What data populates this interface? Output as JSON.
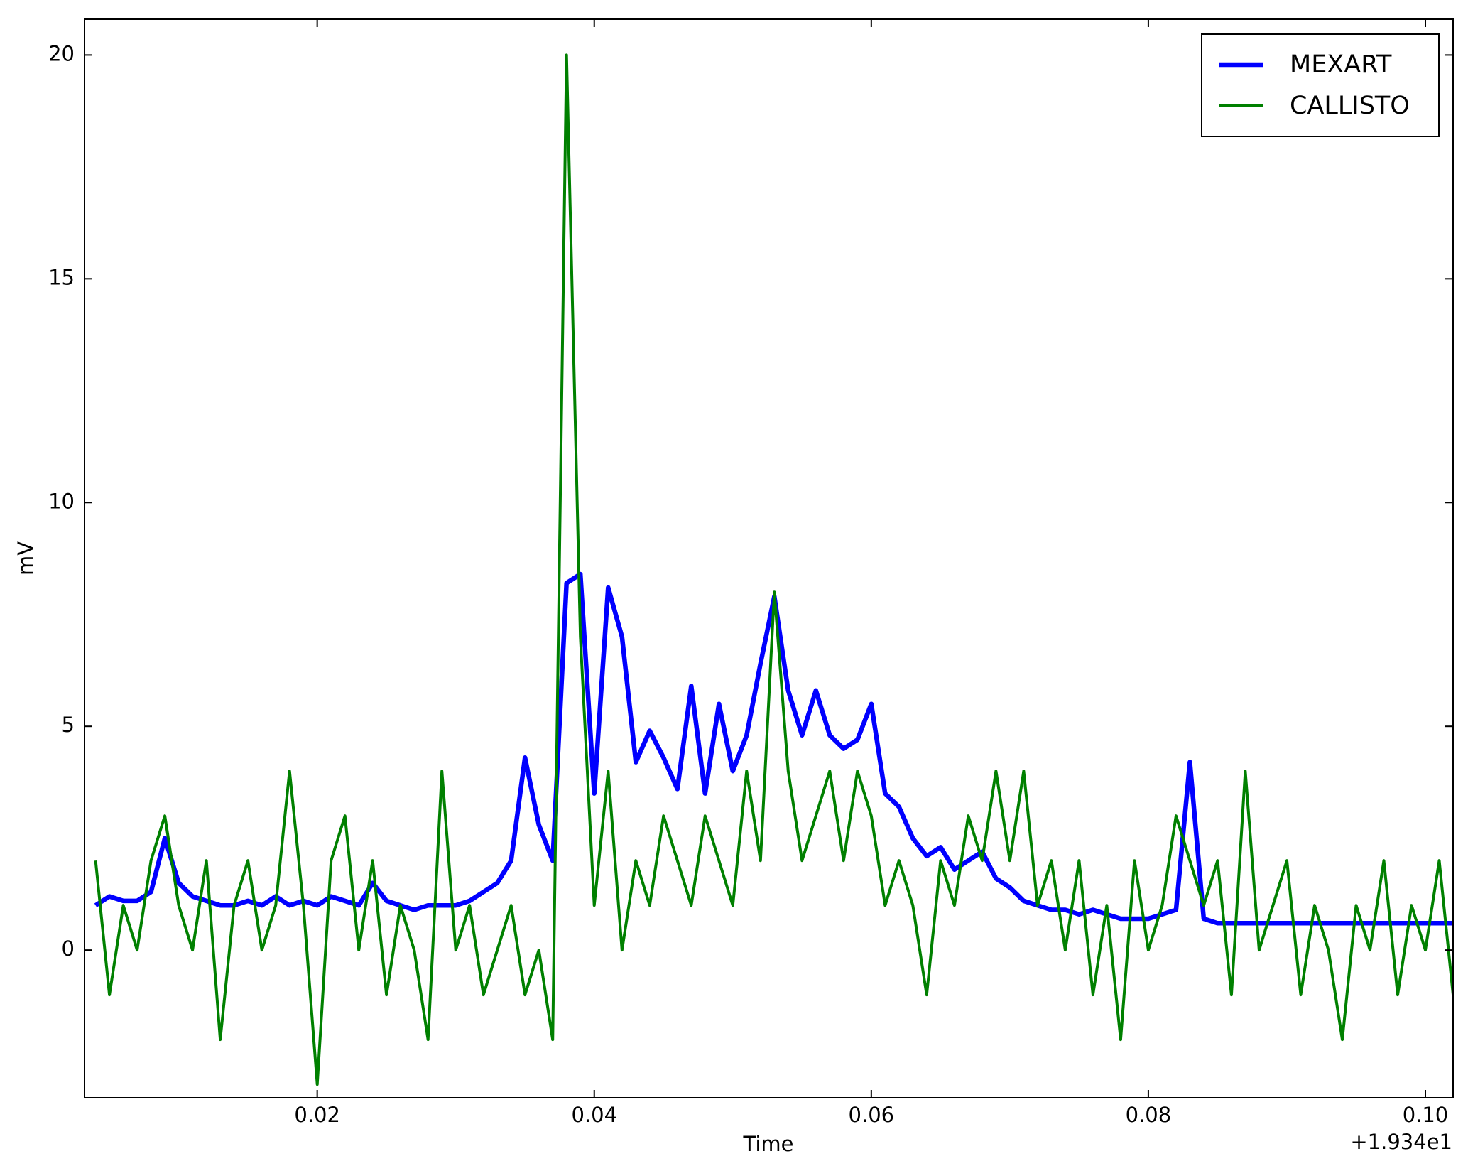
{
  "chart_data": {
    "type": "line",
    "xlabel": "Time",
    "ylabel": "mV",
    "x_offset_label": "+1.934e1",
    "x": [
      0.004,
      0.005,
      0.006,
      0.007,
      0.008,
      0.009,
      0.01,
      0.011,
      0.012,
      0.013,
      0.014,
      0.015,
      0.016,
      0.017,
      0.018,
      0.019,
      0.02,
      0.021,
      0.022,
      0.023,
      0.024,
      0.025,
      0.026,
      0.027,
      0.028,
      0.029,
      0.03,
      0.031,
      0.032,
      0.033,
      0.034,
      0.035,
      0.036,
      0.037,
      0.038,
      0.039,
      0.04,
      0.041,
      0.042,
      0.043,
      0.044,
      0.045,
      0.046,
      0.047,
      0.048,
      0.049,
      0.05,
      0.051,
      0.052,
      0.053,
      0.054,
      0.055,
      0.056,
      0.057,
      0.058,
      0.059,
      0.06,
      0.061,
      0.062,
      0.063,
      0.064,
      0.065,
      0.066,
      0.067,
      0.068,
      0.069,
      0.07,
      0.071,
      0.072,
      0.073,
      0.074,
      0.075,
      0.076,
      0.077,
      0.078,
      0.079,
      0.08,
      0.081,
      0.082,
      0.083,
      0.084,
      0.085,
      0.086,
      0.087,
      0.088,
      0.089,
      0.09,
      0.091,
      0.092,
      0.093,
      0.094,
      0.095,
      0.096,
      0.097,
      0.098,
      0.099,
      0.1,
      0.101,
      0.102
    ],
    "series": [
      {
        "name": "MEXART",
        "color": "#0000ff",
        "width": 6.5,
        "values": [
          1,
          1.2,
          1.1,
          1.1,
          1.3,
          2.5,
          1.5,
          1.2,
          1.1,
          1.0,
          1.0,
          1.1,
          1.0,
          1.2,
          1.0,
          1.1,
          1.0,
          1.2,
          1.1,
          1.0,
          1.5,
          1.1,
          1.0,
          0.9,
          1.0,
          1.0,
          1.0,
          1.1,
          1.3,
          1.5,
          2.0,
          4.3,
          2.8,
          2.0,
          8.2,
          8.4,
          3.5,
          8.1,
          7.0,
          4.2,
          4.9,
          4.3,
          3.6,
          5.9,
          3.5,
          5.5,
          4.0,
          4.8,
          6.4,
          7.9,
          5.8,
          4.8,
          5.8,
          4.8,
          4.5,
          4.7,
          5.5,
          3.5,
          3.2,
          2.5,
          2.1,
          2.3,
          1.8,
          2.0,
          2.2,
          1.6,
          1.4,
          1.1,
          1.0,
          0.9,
          0.9,
          0.8,
          0.9,
          0.8,
          0.7,
          0.7,
          0.7,
          0.8,
          0.9,
          4.2,
          0.7,
          0.6,
          0.6,
          0.6,
          0.6,
          0.6,
          0.6,
          0.6,
          0.6,
          0.6,
          0.6,
          0.6,
          0.6,
          0.6,
          0.6,
          0.6,
          0.6,
          0.6,
          0.6
        ]
      },
      {
        "name": "CALLISTO",
        "color": "#008000",
        "width": 4,
        "values": [
          2,
          -1,
          1,
          0,
          2,
          3,
          1,
          0,
          2,
          -2,
          1,
          2,
          0,
          1,
          4,
          1,
          -3,
          2,
          3,
          0,
          2,
          -1,
          1,
          0,
          -2,
          4,
          0,
          1,
          -1,
          0,
          1,
          -1,
          0,
          -2,
          20,
          7,
          1,
          4,
          0,
          2,
          1,
          3,
          2,
          1,
          3,
          2,
          1,
          4,
          2,
          8,
          4,
          2,
          3,
          4,
          2,
          4,
          3,
          1,
          2,
          1,
          -1,
          2,
          1,
          3,
          2,
          4,
          2,
          4,
          1,
          2,
          0,
          2,
          -1,
          1,
          -2,
          2,
          0,
          1,
          3,
          2,
          1,
          2,
          -1,
          4,
          0,
          1,
          2,
          -1,
          1,
          0,
          -2,
          1,
          0,
          2,
          -1,
          1,
          0,
          2,
          -1
        ]
      }
    ],
    "xlim": [
      0.0032,
      0.102
    ],
    "ylim": [
      -3.3,
      20.8
    ],
    "xticks": [
      0.02,
      0.04,
      0.06,
      0.08,
      {
        "value": 0.1,
        "label": "0.10"
      }
    ],
    "yticks": [
      0,
      5,
      10,
      15,
      20
    ],
    "legend": "upper right"
  }
}
